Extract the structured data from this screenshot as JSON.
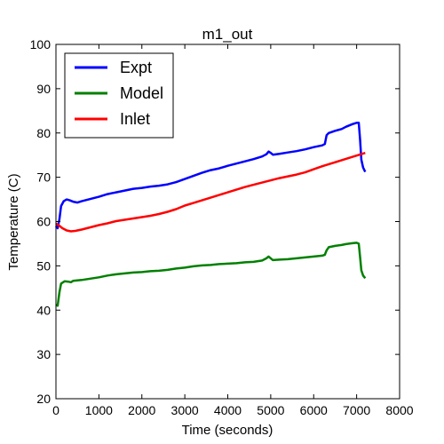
{
  "chart_data": {
    "type": "line",
    "title": "m1_out",
    "xlabel": "Time (seconds)",
    "ylabel": "Temperature (C)",
    "xlim": [
      0,
      8000
    ],
    "ylim": [
      20,
      100
    ],
    "xticks": [
      0,
      1000,
      2000,
      3000,
      4000,
      5000,
      6000,
      7000,
      8000
    ],
    "yticks": [
      20,
      30,
      40,
      50,
      60,
      70,
      80,
      90,
      100
    ],
    "grid": false,
    "legend_position": "top-left",
    "series": [
      {
        "name": "Expt",
        "color": "#0000ff",
        "points": [
          [
            0,
            59.0
          ],
          [
            40,
            58.5
          ],
          [
            80,
            60.5
          ],
          [
            120,
            63.5
          ],
          [
            180,
            64.6
          ],
          [
            250,
            65.0
          ],
          [
            320,
            64.8
          ],
          [
            400,
            64.5
          ],
          [
            500,
            64.3
          ],
          [
            600,
            64.6
          ],
          [
            800,
            65.1
          ],
          [
            1000,
            65.6
          ],
          [
            1200,
            66.2
          ],
          [
            1400,
            66.6
          ],
          [
            1600,
            67.0
          ],
          [
            1800,
            67.4
          ],
          [
            2000,
            67.6
          ],
          [
            2200,
            67.9
          ],
          [
            2400,
            68.1
          ],
          [
            2600,
            68.4
          ],
          [
            2800,
            68.9
          ],
          [
            3000,
            69.6
          ],
          [
            3200,
            70.3
          ],
          [
            3400,
            71.0
          ],
          [
            3600,
            71.6
          ],
          [
            3800,
            72.0
          ],
          [
            4000,
            72.6
          ],
          [
            4200,
            73.1
          ],
          [
            4400,
            73.6
          ],
          [
            4600,
            74.1
          ],
          [
            4800,
            74.7
          ],
          [
            4900,
            75.2
          ],
          [
            4950,
            75.8
          ],
          [
            5000,
            75.5
          ],
          [
            5050,
            75.1
          ],
          [
            5200,
            75.3
          ],
          [
            5400,
            75.6
          ],
          [
            5600,
            75.9
          ],
          [
            5800,
            76.3
          ],
          [
            6000,
            76.8
          ],
          [
            6200,
            77.2
          ],
          [
            6260,
            77.5
          ],
          [
            6300,
            79.5
          ],
          [
            6350,
            80.0
          ],
          [
            6500,
            80.5
          ],
          [
            6650,
            80.9
          ],
          [
            6750,
            81.4
          ],
          [
            6900,
            82.0
          ],
          [
            7000,
            82.3
          ],
          [
            7050,
            82.3
          ],
          [
            7080,
            78.5
          ],
          [
            7110,
            74.0
          ],
          [
            7150,
            72.2
          ],
          [
            7200,
            71.2
          ]
        ]
      },
      {
        "name": "Model",
        "color": "#008000",
        "points": [
          [
            0,
            41.2
          ],
          [
            40,
            41.0
          ],
          [
            80,
            44.0
          ],
          [
            120,
            46.0
          ],
          [
            200,
            46.5
          ],
          [
            300,
            46.4
          ],
          [
            350,
            46.3
          ],
          [
            400,
            46.6
          ],
          [
            600,
            46.8
          ],
          [
            800,
            47.1
          ],
          [
            1000,
            47.4
          ],
          [
            1200,
            47.8
          ],
          [
            1400,
            48.1
          ],
          [
            1600,
            48.3
          ],
          [
            1800,
            48.5
          ],
          [
            2000,
            48.6
          ],
          [
            2200,
            48.8
          ],
          [
            2400,
            48.9
          ],
          [
            2600,
            49.1
          ],
          [
            2800,
            49.4
          ],
          [
            3000,
            49.6
          ],
          [
            3200,
            49.9
          ],
          [
            3400,
            50.1
          ],
          [
            3600,
            50.2
          ],
          [
            3800,
            50.4
          ],
          [
            4000,
            50.5
          ],
          [
            4200,
            50.6
          ],
          [
            4400,
            50.8
          ],
          [
            4600,
            50.9
          ],
          [
            4800,
            51.2
          ],
          [
            4900,
            51.7
          ],
          [
            4950,
            52.1
          ],
          [
            5000,
            51.7
          ],
          [
            5050,
            51.3
          ],
          [
            5200,
            51.4
          ],
          [
            5400,
            51.5
          ],
          [
            5600,
            51.7
          ],
          [
            5800,
            51.9
          ],
          [
            6000,
            52.1
          ],
          [
            6200,
            52.3
          ],
          [
            6260,
            52.5
          ],
          [
            6300,
            53.5
          ],
          [
            6350,
            54.2
          ],
          [
            6500,
            54.5
          ],
          [
            6650,
            54.7
          ],
          [
            6750,
            54.9
          ],
          [
            6900,
            55.1
          ],
          [
            7000,
            55.2
          ],
          [
            7050,
            55.0
          ],
          [
            7080,
            52.0
          ],
          [
            7110,
            49.0
          ],
          [
            7150,
            47.8
          ],
          [
            7200,
            47.2
          ]
        ]
      },
      {
        "name": "Inlet",
        "color": "#ff0000",
        "points": [
          [
            0,
            59.5
          ],
          [
            60,
            59.2
          ],
          [
            150,
            58.5
          ],
          [
            250,
            58.0
          ],
          [
            350,
            57.8
          ],
          [
            450,
            57.9
          ],
          [
            600,
            58.2
          ],
          [
            800,
            58.7
          ],
          [
            1000,
            59.2
          ],
          [
            1200,
            59.6
          ],
          [
            1400,
            60.1
          ],
          [
            1600,
            60.4
          ],
          [
            1800,
            60.7
          ],
          [
            2000,
            61.0
          ],
          [
            2200,
            61.3
          ],
          [
            2400,
            61.7
          ],
          [
            2600,
            62.2
          ],
          [
            2800,
            62.8
          ],
          [
            3000,
            63.6
          ],
          [
            3200,
            64.2
          ],
          [
            3400,
            64.8
          ],
          [
            3600,
            65.4
          ],
          [
            3800,
            66.0
          ],
          [
            4000,
            66.6
          ],
          [
            4200,
            67.2
          ],
          [
            4400,
            67.8
          ],
          [
            4600,
            68.3
          ],
          [
            4800,
            68.8
          ],
          [
            5000,
            69.3
          ],
          [
            5200,
            69.8
          ],
          [
            5400,
            70.2
          ],
          [
            5600,
            70.6
          ],
          [
            5800,
            71.1
          ],
          [
            6000,
            71.8
          ],
          [
            6200,
            72.5
          ],
          [
            6400,
            73.1
          ],
          [
            6600,
            73.7
          ],
          [
            6800,
            74.3
          ],
          [
            7000,
            74.9
          ],
          [
            7200,
            75.5
          ]
        ]
      }
    ]
  }
}
